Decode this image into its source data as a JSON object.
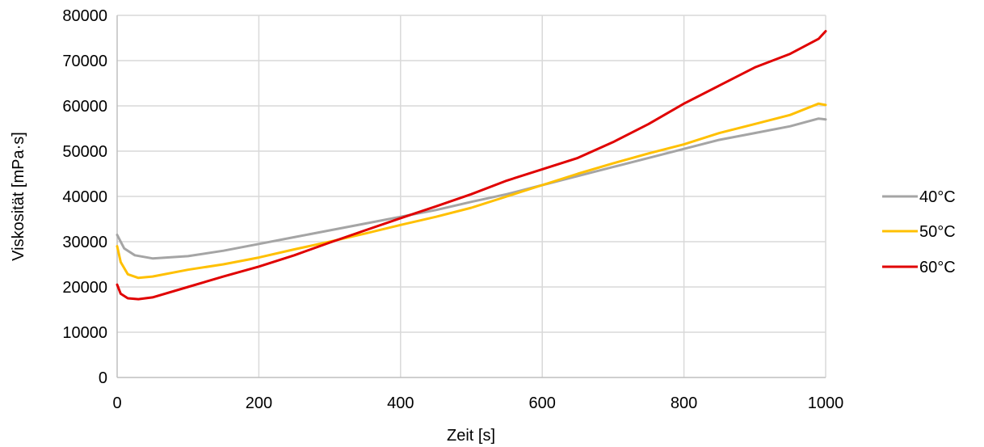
{
  "chart_data": {
    "type": "line",
    "xlabel": "Zeit [s]",
    "ylabel": "Viskosität [mPa·s]",
    "xlim": [
      0,
      1000
    ],
    "ylim": [
      0,
      80000
    ],
    "xticks": [
      0,
      200,
      400,
      600,
      800,
      1000
    ],
    "yticks": [
      0,
      10000,
      20000,
      30000,
      40000,
      50000,
      60000,
      70000,
      80000
    ],
    "grid": true,
    "legend_position": "right",
    "series": [
      {
        "name": "40°C",
        "color": "#a5a5a5",
        "x": [
          0,
          10,
          25,
          50,
          100,
          150,
          200,
          250,
          300,
          350,
          400,
          450,
          500,
          550,
          600,
          650,
          700,
          750,
          800,
          850,
          900,
          950,
          990,
          1000
        ],
        "y": [
          31500,
          28500,
          27000,
          26300,
          26800,
          28000,
          29500,
          31000,
          32500,
          34000,
          35500,
          37000,
          38800,
          40500,
          42500,
          44500,
          46500,
          48500,
          50500,
          52500,
          54000,
          55500,
          57200,
          57000
        ]
      },
      {
        "name": "50°C",
        "color": "#ffc000",
        "x": [
          0,
          5,
          15,
          30,
          50,
          100,
          150,
          200,
          250,
          300,
          350,
          400,
          450,
          500,
          550,
          600,
          650,
          700,
          750,
          800,
          850,
          900,
          950,
          990,
          1000
        ],
        "y": [
          29000,
          25500,
          22800,
          22000,
          22300,
          23800,
          25000,
          26500,
          28300,
          30000,
          31800,
          33700,
          35500,
          37500,
          40000,
          42500,
          45000,
          47300,
          49500,
          51500,
          54000,
          56000,
          58000,
          60500,
          60200
        ]
      },
      {
        "name": "60°C",
        "color": "#e00000",
        "x": [
          0,
          5,
          15,
          30,
          50,
          100,
          150,
          200,
          250,
          300,
          350,
          400,
          450,
          500,
          550,
          600,
          650,
          700,
          750,
          800,
          850,
          900,
          950,
          990,
          1000
        ],
        "y": [
          20500,
          18500,
          17500,
          17300,
          17700,
          20000,
          22300,
          24500,
          27000,
          29800,
          32500,
          35200,
          37800,
          40500,
          43500,
          46000,
          48500,
          52000,
          56000,
          60500,
          64500,
          68500,
          71500,
          74800,
          76500
        ]
      }
    ]
  }
}
